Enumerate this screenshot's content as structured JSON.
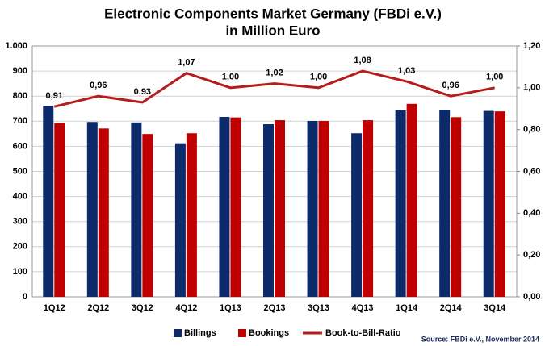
{
  "chart_data": {
    "type": "bar",
    "title": [
      "Electronic Components Market Germany (FBDi e.V.)",
      "in Million Euro"
    ],
    "categories": [
      "1Q12",
      "2Q12",
      "3Q12",
      "4Q12",
      "1Q13",
      "2Q13",
      "3Q13",
      "4Q13",
      "1Q14",
      "2Q14",
      "3Q14"
    ],
    "series": [
      {
        "name": "Billings",
        "color": "#0d2a6b",
        "values": [
          762,
          697,
          695,
          612,
          717,
          688,
          701,
          652,
          743,
          746,
          741
        ]
      },
      {
        "name": "Bookings",
        "color": "#c00000",
        "values": [
          693,
          671,
          649,
          652,
          715,
          704,
          701,
          704,
          769,
          716,
          739
        ]
      },
      {
        "name": "Book-to-Bill-Ratio",
        "color": "#b71c1c",
        "type": "line",
        "axis": "y2",
        "values": [
          0.91,
          0.96,
          0.93,
          1.07,
          1.0,
          1.02,
          1.0,
          1.08,
          1.03,
          0.96,
          1.0
        ],
        "value_labels": [
          "0,91",
          "0,96",
          "0,93",
          "1,07",
          "1,00",
          "1,02",
          "1,00",
          "1,08",
          "1,03",
          "0,96",
          "1,00"
        ]
      }
    ],
    "ylim": [
      0,
      1000
    ],
    "yticks": [
      0,
      100,
      200,
      300,
      400,
      500,
      600,
      700,
      800,
      900,
      {
        "value": 1000,
        "label": "1.000"
      }
    ],
    "y2lim": [
      0,
      1.2
    ],
    "y2ticks": [
      {
        "value": 0,
        "label": "0,00"
      },
      {
        "value": 0.2,
        "label": "0,20"
      },
      {
        "value": 0.4,
        "label": "0,40"
      },
      {
        "value": 0.6,
        "label": "0,60"
      },
      {
        "value": 0.8,
        "label": "0,80"
      },
      {
        "value": 1.0,
        "label": "1,00"
      },
      {
        "value": 1.2,
        "label": "1,20"
      }
    ],
    "grid": true,
    "legend": "bottom",
    "source": "Source: FBDi e.V., November 2014"
  }
}
